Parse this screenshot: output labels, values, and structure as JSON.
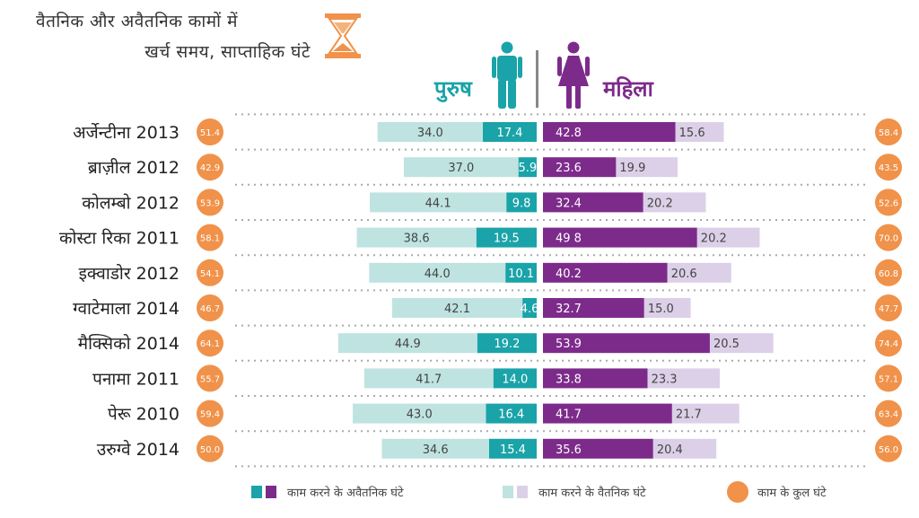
{
  "title": {
    "line1": "वैतनिक और अवैतनिक कामों में",
    "line2": "खर्च समय, साप्ताहिक घंटे"
  },
  "labels": {
    "men": "पुरुष",
    "women": "महिला"
  },
  "icons": {
    "title": "hourglass-icon",
    "men": "man-icon",
    "women": "woman-icon"
  },
  "colors": {
    "men_unpaid": "#1aa3a8",
    "men_paid": "#bfe3e1",
    "women_unpaid": "#7d2b8b",
    "women_paid": "#dcd0e8",
    "total_circle": "#f0924a"
  },
  "legend": {
    "unpaid": "काम करने के अवैतनिक घंटे",
    "paid": "काम करने के वैतनिक घंटे",
    "total": "काम के कुल घंटे"
  },
  "chart_data": {
    "type": "bar",
    "orientation": "horizontal-diverging",
    "categories": [
      "अर्जेन्टीना 2013",
      "ब्राज़ील 2012",
      "कोलम्बो 2012",
      "कोस्टा रिका 2011",
      "इक्वाडोर 2012",
      "ग्वाटेमाला 2014",
      "मैक्सिको 2014",
      "पनामा 2011",
      "पेरू 2010",
      "उरुग्वे 2014"
    ],
    "series": [
      {
        "name": "पुरुष काम करने के वैतनिक घंटे",
        "values": [
          34.0,
          37.0,
          44.1,
          38.6,
          44.0,
          42.1,
          44.9,
          41.7,
          43.0,
          34.6
        ]
      },
      {
        "name": "पुरुष काम करने के अवैतनिक घंटे",
        "values": [
          17.4,
          5.9,
          9.8,
          19.5,
          10.1,
          4.6,
          19.2,
          14.0,
          16.4,
          15.4
        ]
      },
      {
        "name": "महिला काम करने के अवैतनिक घंटे",
        "values": [
          42.8,
          23.6,
          32.4,
          49.8,
          40.2,
          32.7,
          53.9,
          33.8,
          41.7,
          35.6
        ]
      },
      {
        "name": "महिला काम करने के वैतनिक घंटे",
        "values": [
          15.6,
          19.9,
          20.2,
          20.2,
          20.6,
          15.0,
          20.5,
          23.3,
          21.7,
          20.4
        ]
      }
    ],
    "value_labels": {
      "men_paid": [
        "34.0",
        "37.0",
        "44.1",
        "38.6",
        "44.0",
        "42.1",
        "44.9",
        "41.7",
        "43.0",
        "34.6"
      ],
      "men_unpaid": [
        "17.4",
        "5.9",
        "9.8",
        "19.5",
        "10.1",
        "4.6",
        "19.2",
        "14.0",
        "16.4",
        "15.4"
      ],
      "women_unpaid": [
        "42.8",
        "23.6",
        "32.4",
        "49 8",
        "40.2",
        "32.7",
        "53.9",
        "33.8",
        "41.7",
        "35.6"
      ],
      "women_paid": [
        "15.6",
        "19.9",
        "20.2",
        "20.2",
        "20.6",
        "15.0",
        "20.5",
        "23.3",
        "21.7",
        "20.4"
      ]
    },
    "totals": {
      "men": [
        "51.4",
        "42.9",
        "53.9",
        "58.1",
        "54.1",
        "46.7",
        "64.1",
        "55.7",
        "59.4",
        "50.0"
      ],
      "women": [
        "58.4",
        "43.5",
        "52.6",
        "70.0",
        "60.8",
        "47.7",
        "74.4",
        "57.1",
        "63.4",
        "56.0"
      ]
    },
    "grid": "dotted",
    "legend_position": "bottom"
  }
}
